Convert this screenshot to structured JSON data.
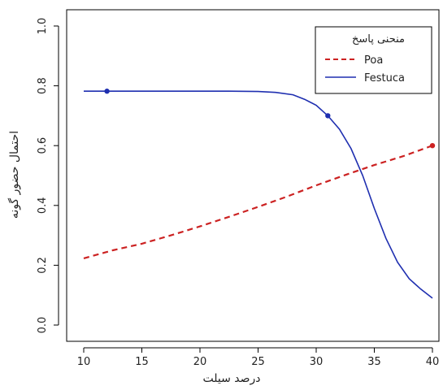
{
  "chart_data": {
    "type": "line",
    "title": "",
    "xlabel": "درصد سیلت",
    "ylabel": "احتمال حضور گونه",
    "xlim": [
      10,
      40
    ],
    "ylim": [
      0,
      1
    ],
    "x_ticks": [
      "10",
      "15",
      "20",
      "25",
      "30",
      "35",
      "40"
    ],
    "y_ticks": [
      "0.0",
      "0.2",
      "0.4",
      "0.6",
      "0.8",
      "1.0"
    ],
    "grid": false,
    "legend": {
      "title": "منحنی پاسخ",
      "placement": "top-right",
      "entries": [
        {
          "label": "Poa",
          "color": "#cc2222",
          "style": "dashed"
        },
        {
          "label": "Festuca",
          "color": "#1f2fb0",
          "style": "solid"
        }
      ]
    },
    "series": [
      {
        "name": "Poa",
        "color": "#cc2222",
        "style": "dashed",
        "x": [
          10,
          12.5,
          15,
          17.5,
          20,
          22.5,
          25,
          27.5,
          30,
          32.5,
          35,
          37.5,
          40
        ],
        "y": [
          0.223,
          0.25,
          0.272,
          0.3,
          0.33,
          0.362,
          0.395,
          0.43,
          0.467,
          0.502,
          0.535,
          0.565,
          0.6
        ]
      },
      {
        "name": "Festuca",
        "color": "#1f2fb0",
        "style": "solid",
        "x": [
          10,
          12.5,
          15,
          17.5,
          20,
          22.5,
          25,
          26.5,
          28,
          29,
          30,
          31,
          32,
          33,
          34,
          35,
          36,
          37,
          38,
          39,
          40
        ],
        "y": [
          0.782,
          0.782,
          0.782,
          0.782,
          0.782,
          0.782,
          0.781,
          0.778,
          0.77,
          0.755,
          0.735,
          0.7,
          0.655,
          0.59,
          0.5,
          0.39,
          0.29,
          0.21,
          0.155,
          0.12,
          0.09
        ]
      }
    ],
    "points": [
      {
        "x": 12,
        "y": 0.782,
        "color": "#1f2fb0"
      },
      {
        "x": 31,
        "y": 0.7,
        "color": "#1f2fb0"
      },
      {
        "x": 40,
        "y": 0.6,
        "color": "#cc2222"
      }
    ]
  }
}
